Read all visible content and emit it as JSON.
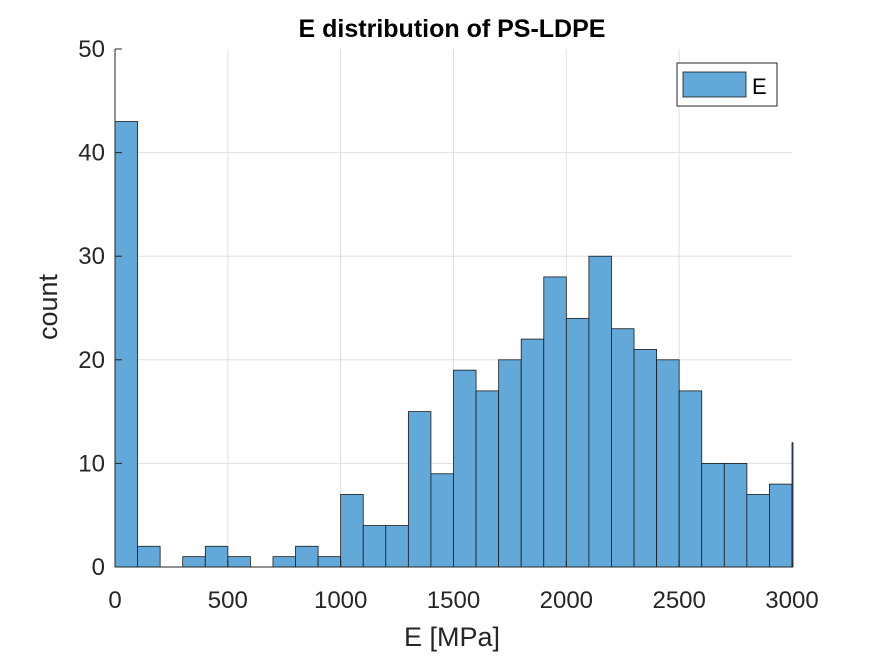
{
  "chart_data": {
    "type": "bar",
    "title": "E distribution of PS-LDPE",
    "xlabel": "E [MPa]",
    "ylabel": "count",
    "xlim": [
      0,
      3000
    ],
    "ylim": [
      0,
      50
    ],
    "xticks": [
      0,
      500,
      1000,
      1500,
      2000,
      2500,
      3000
    ],
    "xtick_labels": [
      "0",
      "500",
      "1000",
      "1500",
      "2000",
      "2500",
      "3000"
    ],
    "yticks": [
      0,
      10,
      20,
      30,
      40,
      50
    ],
    "ytick_labels": [
      "0",
      "10",
      "20",
      "30",
      "40",
      "50"
    ],
    "grid": true,
    "legend_position": "top-right",
    "bin_width": 100,
    "bin_starts": [
      0,
      100,
      200,
      300,
      400,
      500,
      600,
      700,
      800,
      900,
      1000,
      1100,
      1200,
      1300,
      1400,
      1500,
      1600,
      1700,
      1800,
      1900,
      2000,
      2100,
      2200,
      2300,
      2400,
      2500,
      2600,
      2700,
      2800,
      2900,
      3000
    ],
    "series": [
      {
        "name": "E",
        "color": "#62a8d9",
        "values": [
          43,
          2,
          0,
          1,
          2,
          1,
          0,
          1,
          2,
          1,
          7,
          4,
          4,
          15,
          9,
          19,
          17,
          20,
          22,
          28,
          24,
          30,
          23,
          21,
          20,
          17,
          10,
          10,
          7,
          8,
          12
        ]
      }
    ]
  }
}
